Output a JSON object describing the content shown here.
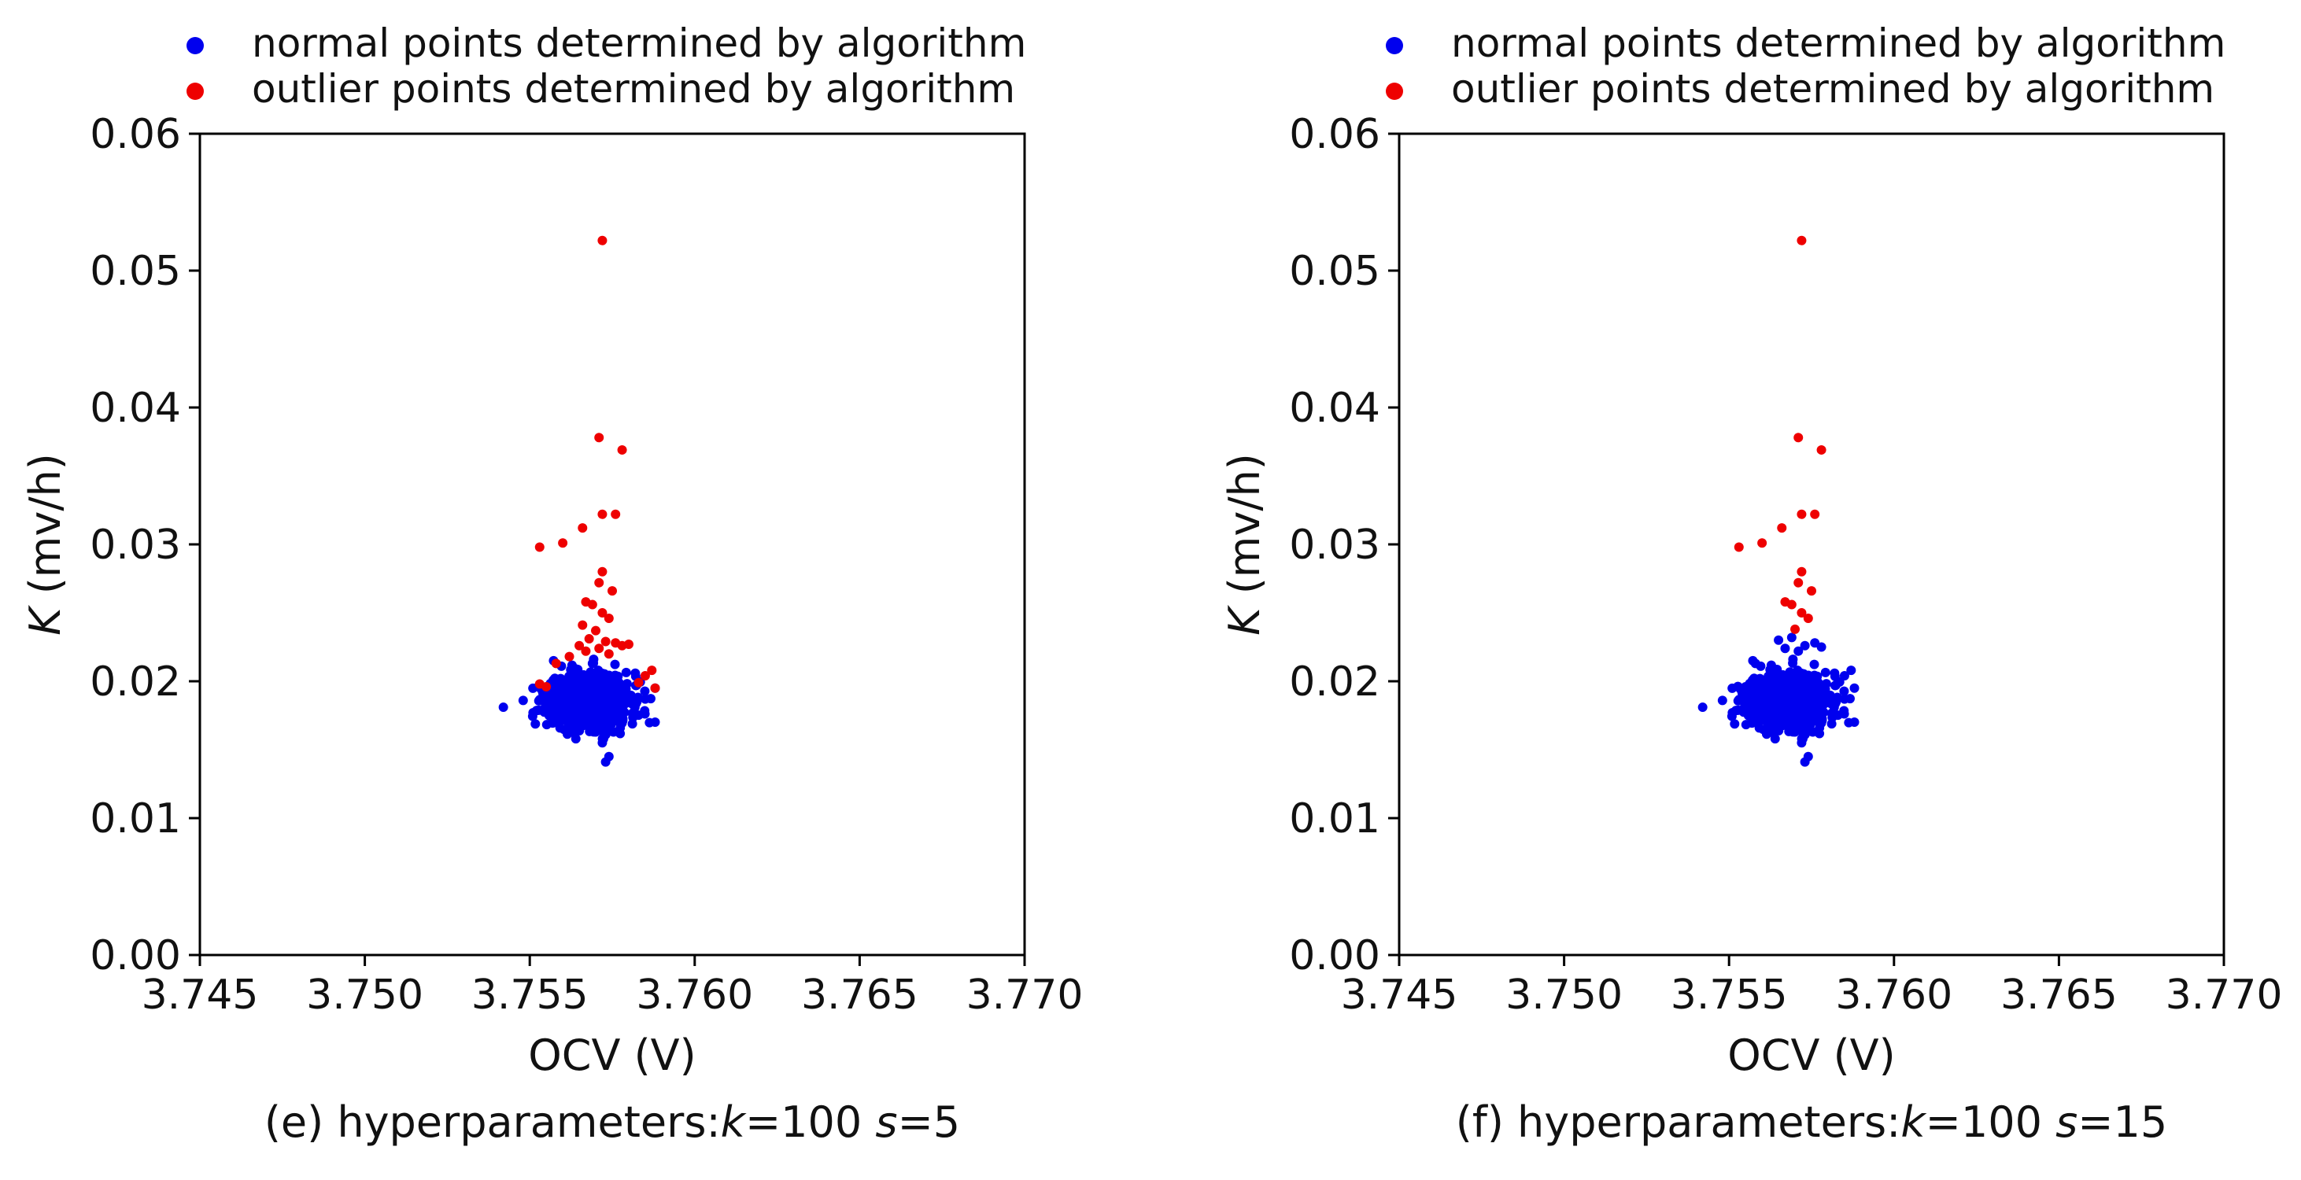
{
  "legend": {
    "normal_label": "normal points determined by algorithm",
    "outlier_label": "outlier points determined by algorithm",
    "normal_color": "#0000ee",
    "outlier_color": "#ee0000"
  },
  "chart_data": [
    {
      "type": "scatter",
      "panel": "e",
      "xlabel": "OCV (V)",
      "ylabel_symbol": "K",
      "ylabel_unit": " (mv/h)",
      "xlim": [
        3.745,
        3.77
      ],
      "ylim": [
        0,
        0.06
      ],
      "xticks": [
        "3.745",
        "3.750",
        "3.755",
        "3.760",
        "3.765",
        "3.770"
      ],
      "yticks": [
        "0.00",
        "0.01",
        "0.02",
        "0.03",
        "0.04",
        "0.05",
        "0.06"
      ],
      "caption": {
        "prefix": "(e) hyperparameters:",
        "k_sym": "k",
        "k_val": "=100 ",
        "s_sym": "s",
        "s_val": "=5"
      },
      "series": [
        {
          "name": "normal points determined by algorithm",
          "color": "#0000ee",
          "cluster": {
            "x_center": 3.7568,
            "x_spread": 0.0011,
            "y_center": 0.0186,
            "y_spread": 0.001,
            "count": 900,
            "seed": 11
          },
          "points": [
            [
              3.7542,
              0.0181
            ],
            [
              3.7548,
              0.0186
            ],
            [
              3.7551,
              0.0177
            ],
            [
              3.7588,
              0.0195
            ],
            [
              3.7585,
              0.0187
            ],
            [
              3.7572,
              0.0155
            ],
            [
              3.7574,
              0.0145
            ],
            [
              3.7573,
              0.0141
            ],
            [
              3.7569,
              0.0213
            ],
            [
              3.7564,
              0.0209
            ]
          ]
        },
        {
          "name": "outlier points determined by algorithm",
          "color": "#ee0000",
          "points": [
            [
              3.7572,
              0.0522
            ],
            [
              3.7571,
              0.0378
            ],
            [
              3.7578,
              0.0369
            ],
            [
              3.7572,
              0.0322
            ],
            [
              3.7576,
              0.0322
            ],
            [
              3.7566,
              0.0312
            ],
            [
              3.7553,
              0.0298
            ],
            [
              3.756,
              0.0301
            ],
            [
              3.7572,
              0.028
            ],
            [
              3.7571,
              0.0272
            ],
            [
              3.7575,
              0.0266
            ],
            [
              3.7567,
              0.0258
            ],
            [
              3.7569,
              0.0256
            ],
            [
              3.7572,
              0.025
            ],
            [
              3.7574,
              0.0246
            ],
            [
              3.7566,
              0.0241
            ],
            [
              3.757,
              0.0237
            ],
            [
              3.7568,
              0.0231
            ],
            [
              3.7573,
              0.0229
            ],
            [
              3.7576,
              0.0228
            ],
            [
              3.7565,
              0.0226
            ],
            [
              3.7571,
              0.0224
            ],
            [
              3.7578,
              0.0226
            ],
            [
              3.7567,
              0.0222
            ],
            [
              3.7574,
              0.022
            ],
            [
              3.758,
              0.0227
            ],
            [
              3.7562,
              0.0218
            ],
            [
              3.7585,
              0.0204
            ],
            [
              3.7587,
              0.0208
            ],
            [
              3.7558,
              0.0213
            ],
            [
              3.7555,
              0.0196
            ],
            [
              3.7553,
              0.0198
            ],
            [
              3.7583,
              0.0199
            ],
            [
              3.7588,
              0.0195
            ]
          ]
        }
      ]
    },
    {
      "type": "scatter",
      "panel": "f",
      "xlabel": "OCV (V)",
      "ylabel_symbol": "K",
      "ylabel_unit": " (mv/h)",
      "xlim": [
        3.745,
        3.77
      ],
      "ylim": [
        0,
        0.06
      ],
      "xticks": [
        "3.745",
        "3.750",
        "3.755",
        "3.760",
        "3.765",
        "3.770"
      ],
      "yticks": [
        "0.00",
        "0.01",
        "0.02",
        "0.03",
        "0.04",
        "0.05",
        "0.06"
      ],
      "caption": {
        "prefix": "(f) hyperparameters:",
        "k_sym": "k",
        "k_val": "=100 ",
        "s_sym": "s",
        "s_val": "=15"
      },
      "series": [
        {
          "name": "normal points determined by algorithm",
          "color": "#0000ee",
          "cluster": {
            "x_center": 3.7568,
            "x_spread": 0.0011,
            "y_center": 0.0186,
            "y_spread": 0.001,
            "count": 900,
            "seed": 11
          },
          "points": [
            [
              3.7542,
              0.0181
            ],
            [
              3.7548,
              0.0186
            ],
            [
              3.7551,
              0.0177
            ],
            [
              3.7588,
              0.0195
            ],
            [
              3.7585,
              0.0187
            ],
            [
              3.7572,
              0.0155
            ],
            [
              3.7574,
              0.0145
            ],
            [
              3.7573,
              0.0141
            ],
            [
              3.7569,
              0.0232
            ],
            [
              3.7565,
              0.023
            ],
            [
              3.7573,
              0.0226
            ],
            [
              3.7567,
              0.0224
            ],
            [
              3.7576,
              0.0228
            ],
            [
              3.7571,
              0.0222
            ],
            [
              3.7578,
              0.0225
            ],
            [
              3.7585,
              0.0204
            ],
            [
              3.7587,
              0.0208
            ],
            [
              3.7558,
              0.0213
            ],
            [
              3.7555,
              0.0196
            ],
            [
              3.7583,
              0.0199
            ]
          ]
        },
        {
          "name": "outlier points determined by algorithm",
          "color": "#ee0000",
          "points": [
            [
              3.7572,
              0.0522
            ],
            [
              3.7571,
              0.0378
            ],
            [
              3.7578,
              0.0369
            ],
            [
              3.7572,
              0.0322
            ],
            [
              3.7576,
              0.0322
            ],
            [
              3.7566,
              0.0312
            ],
            [
              3.7553,
              0.0298
            ],
            [
              3.756,
              0.0301
            ],
            [
              3.7572,
              0.028
            ],
            [
              3.7571,
              0.0272
            ],
            [
              3.7575,
              0.0266
            ],
            [
              3.7567,
              0.0258
            ],
            [
              3.7569,
              0.0256
            ],
            [
              3.7572,
              0.025
            ],
            [
              3.7574,
              0.0246
            ],
            [
              3.757,
              0.0238
            ]
          ]
        }
      ]
    }
  ]
}
